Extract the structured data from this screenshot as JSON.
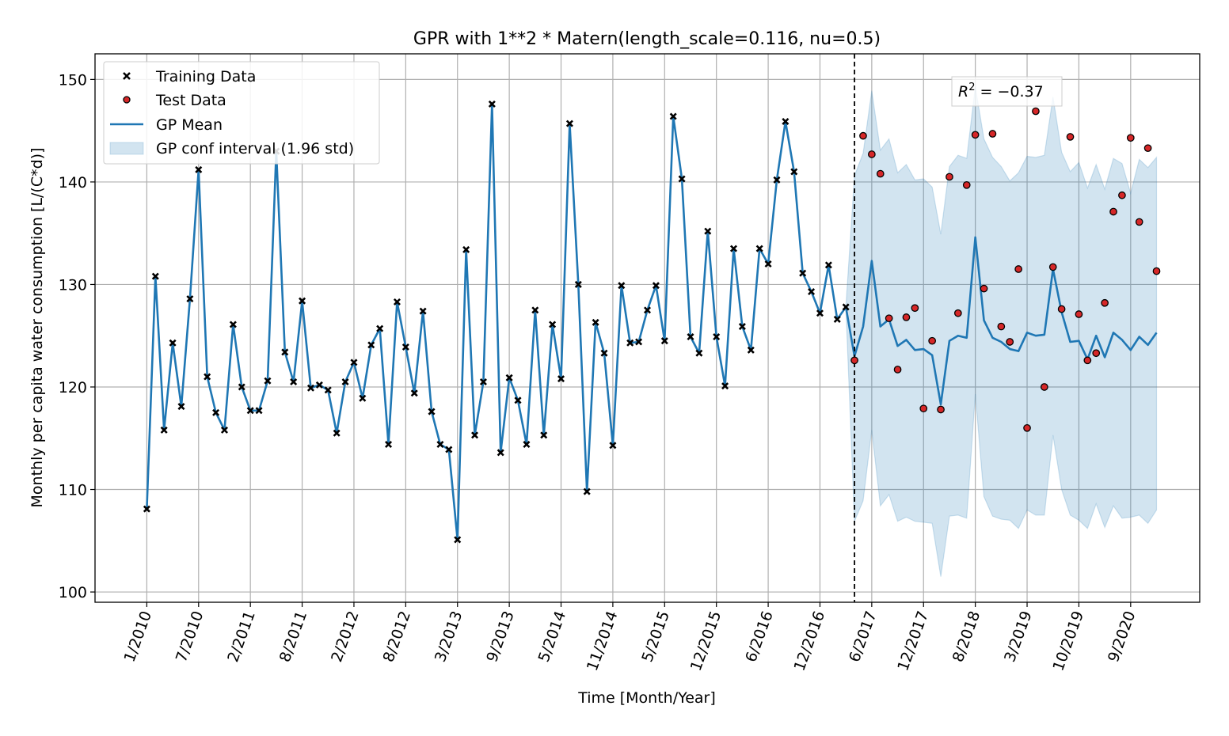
{
  "chart_data": {
    "type": "line",
    "title": "GPR with 1**2 * Matern(length_scale=0.116, nu=0.5)",
    "xlabel": "Time [Month/Year]",
    "ylabel": "Monthly per capita water consumption [L/(C*d)]",
    "ylim": [
      99,
      152.5
    ],
    "xlim": [
      -6,
      122
    ],
    "y_ticks": [
      100,
      110,
      120,
      130,
      140,
      150
    ],
    "x_ticks": [
      {
        "index": 0,
        "label": "1/2010"
      },
      {
        "index": 6,
        "label": "7/2010"
      },
      {
        "index": 12,
        "label": "2/2011"
      },
      {
        "index": 18,
        "label": "8/2011"
      },
      {
        "index": 24,
        "label": "2/2012"
      },
      {
        "index": 30,
        "label": "8/2012"
      },
      {
        "index": 36,
        "label": "3/2013"
      },
      {
        "index": 42,
        "label": "9/2013"
      },
      {
        "index": 48,
        "label": "5/2014"
      },
      {
        "index": 54,
        "label": "11/2014"
      },
      {
        "index": 60,
        "label": "5/2015"
      },
      {
        "index": 66,
        "label": "12/2015"
      },
      {
        "index": 72,
        "label": "6/2016"
      },
      {
        "index": 78,
        "label": "12/2016"
      },
      {
        "index": 84,
        "label": "6/2017"
      },
      {
        "index": 90,
        "label": "12/2017"
      },
      {
        "index": 96,
        "label": "8/2018"
      },
      {
        "index": 102,
        "label": "3/2019"
      },
      {
        "index": 108,
        "label": "10/2019"
      },
      {
        "index": 114,
        "label": "9/2020"
      }
    ],
    "grid": true,
    "legend_position": "top-left",
    "split_index": 82,
    "annotation": {
      "prefix": "R",
      "superscript": "2",
      "rest": " = −0.37"
    },
    "series": [
      {
        "name": "Training Data",
        "kind": "scatter-x",
        "start_index": 0,
        "values": [
          108.1,
          130.8,
          115.8,
          124.3,
          118.1,
          128.6,
          141.2,
          121.0,
          117.5,
          115.8,
          126.1,
          120.0,
          117.7,
          117.7,
          120.6,
          143.0,
          123.4,
          120.5,
          128.4,
          119.9,
          120.2,
          119.7,
          115.5,
          120.5,
          122.4,
          118.9,
          124.1,
          125.7,
          114.4,
          128.3,
          123.9,
          119.4,
          127.4,
          117.6,
          114.4,
          113.9,
          105.1,
          133.4,
          115.3,
          120.5,
          147.6,
          113.6,
          120.9,
          118.7,
          114.4,
          127.5,
          115.3,
          126.1,
          120.8,
          145.7,
          130.0,
          109.8,
          126.3,
          123.3,
          114.3,
          129.9,
          124.3,
          124.4,
          127.5,
          129.9,
          124.5,
          146.4,
          140.3,
          124.9,
          123.3,
          135.2,
          124.9,
          120.1,
          133.5,
          125.9,
          123.6,
          133.5,
          132.0,
          140.2,
          145.9,
          141.0,
          131.1,
          129.3,
          127.2,
          131.9,
          126.6,
          127.8
        ]
      },
      {
        "name": "Test Data",
        "kind": "scatter-dot",
        "start_index": 82,
        "values": [
          122.6,
          144.5,
          142.7,
          140.8,
          126.7,
          121.7,
          126.8,
          127.7,
          117.9,
          124.5,
          117.8,
          140.5,
          127.2,
          139.7,
          144.6,
          129.6,
          144.7,
          125.9,
          124.4,
          131.5,
          116.0,
          146.9,
          120.0,
          131.7,
          127.6,
          144.4,
          127.1,
          122.6,
          123.3,
          128.2,
          137.1,
          138.7,
          144.3,
          136.1,
          143.3,
          131.3
        ]
      },
      {
        "name": "GP Mean",
        "kind": "line",
        "start_index": 0,
        "values": [
          108.1,
          130.8,
          115.8,
          124.3,
          118.1,
          128.6,
          141.2,
          121.0,
          117.5,
          115.8,
          126.1,
          120.0,
          117.7,
          117.7,
          120.6,
          143.0,
          123.4,
          120.5,
          128.4,
          119.9,
          120.2,
          119.7,
          115.5,
          120.5,
          122.4,
          118.9,
          124.1,
          125.7,
          114.4,
          128.3,
          123.9,
          119.4,
          127.4,
          117.6,
          114.4,
          113.9,
          105.1,
          133.4,
          115.3,
          120.5,
          147.6,
          113.6,
          120.9,
          118.7,
          114.4,
          127.5,
          115.3,
          126.1,
          120.8,
          145.7,
          130.0,
          109.8,
          126.3,
          123.3,
          114.3,
          129.9,
          124.3,
          124.4,
          127.5,
          129.9,
          124.5,
          146.4,
          140.3,
          124.9,
          123.3,
          135.2,
          124.9,
          120.1,
          133.5,
          125.9,
          123.6,
          133.5,
          132.0,
          140.2,
          145.9,
          141.0,
          131.1,
          129.3,
          127.2,
          131.9,
          126.6,
          127.8,
          123.0,
          125.9,
          132.3,
          125.9,
          126.6,
          124.0,
          124.6,
          123.6,
          123.7,
          123.1,
          118.3,
          124.5,
          125.0,
          124.8,
          134.6,
          126.5,
          124.8,
          124.4,
          123.7,
          123.5,
          125.3,
          125.0,
          125.1,
          131.5,
          127.3,
          124.4,
          124.5,
          122.7,
          125.0,
          122.9,
          125.3,
          124.6,
          123.6,
          124.9,
          124.1,
          125.3
        ]
      },
      {
        "name": "GP conf interval (1.96 std)",
        "kind": "band",
        "start_index": 81,
        "upper": [
          127.8,
          140.6,
          142.8,
          148.9,
          143.1,
          144.2,
          140.9,
          141.7,
          140.2,
          140.3,
          139.5,
          134.9,
          141.5,
          142.6,
          142.3,
          149.3,
          144.2,
          142.4,
          141.5,
          140.1,
          140.9,
          142.5,
          142.4,
          142.6,
          148.3,
          142.9,
          141.0,
          141.9,
          139.4,
          141.7,
          139.3,
          142.3,
          141.8,
          138.9,
          142.2,
          141.4,
          142.4
        ],
        "lower": [
          127.8,
          106.9,
          108.9,
          115.8,
          108.4,
          109.5,
          106.9,
          107.3,
          106.9,
          106.8,
          106.7,
          101.5,
          107.4,
          107.5,
          107.2,
          119.3,
          109.3,
          107.4,
          107.1,
          107.0,
          106.2,
          108.0,
          107.5,
          107.5,
          115.3,
          110.0,
          107.5,
          107.0,
          106.2,
          108.6,
          106.3,
          108.4,
          107.2,
          107.3,
          107.5,
          106.7,
          108.0
        ]
      }
    ]
  }
}
